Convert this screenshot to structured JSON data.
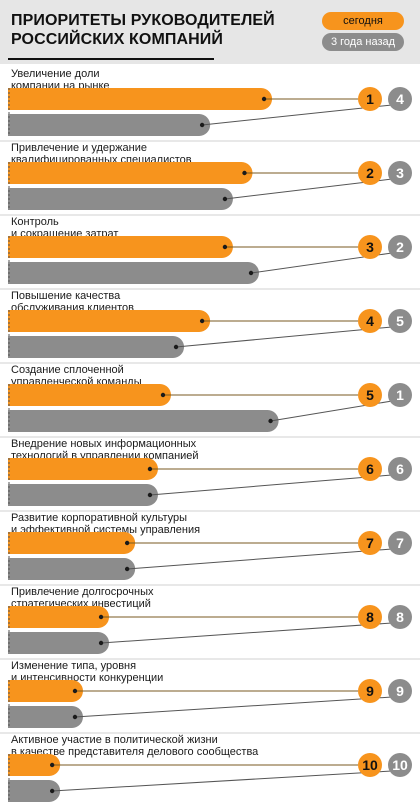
{
  "header": {
    "title_line1": "ПРИОРИТЕТЫ РУКОВОДИТЕЛЕЙ",
    "title_line2": "РОССИЙСКИХ КОМПАНИЙ",
    "legend_today": "сегодня",
    "legend_past": "3 года назад"
  },
  "colors": {
    "today": "#f7941d",
    "past": "#8c8c8c",
    "header_bg": "#e6e6e6"
  },
  "chart_data": {
    "type": "bar",
    "title": "ПРИОРИТЕТЫ РУКОВОДИТЕЛЕЙ РОССИЙСКИХ КОМПАНИЙ",
    "categories": [
      [
        "Увеличение доли",
        "компании на рынке"
      ],
      [
        "Привлечение и удержание",
        "квалифицированных специалистов"
      ],
      [
        "Контроль",
        "и сокращение затрат"
      ],
      [
        "Повышение качества",
        "обслуживания клиентов"
      ],
      [
        "Создание сплоченной",
        "управленческой команды"
      ],
      [
        "Внедрение новых информационных",
        "технологий в управлении компанией"
      ],
      [
        "Развитие корпоративной культуры",
        "и эффективной системы управления"
      ],
      [
        "Привлечение долгосрочных",
        "стратегических инвестиций"
      ],
      [
        "Изменение типа, уровня",
        "и интенсивности конкуренции"
      ],
      [
        "Активное участие в политической жизни",
        "в качестве представителя делового сообщества"
      ]
    ],
    "series": [
      {
        "name": "сегодня",
        "ranks": [
          1,
          2,
          3,
          4,
          5,
          6,
          7,
          8,
          9,
          10
        ]
      },
      {
        "name": "3 года назад",
        "ranks": [
          4,
          3,
          2,
          5,
          1,
          6,
          7,
          8,
          9,
          10
        ]
      }
    ],
    "bar_relative_lengths": {
      "сегодня": [
        0.81,
        0.75,
        0.69,
        0.62,
        0.5,
        0.46,
        0.39,
        0.31,
        0.23,
        0.16
      ],
      "3 года назад": [
        0.62,
        0.69,
        0.77,
        0.54,
        0.83,
        0.46,
        0.39,
        0.31,
        0.23,
        0.16
      ]
    },
    "legend": "top-right",
    "grid": false
  }
}
